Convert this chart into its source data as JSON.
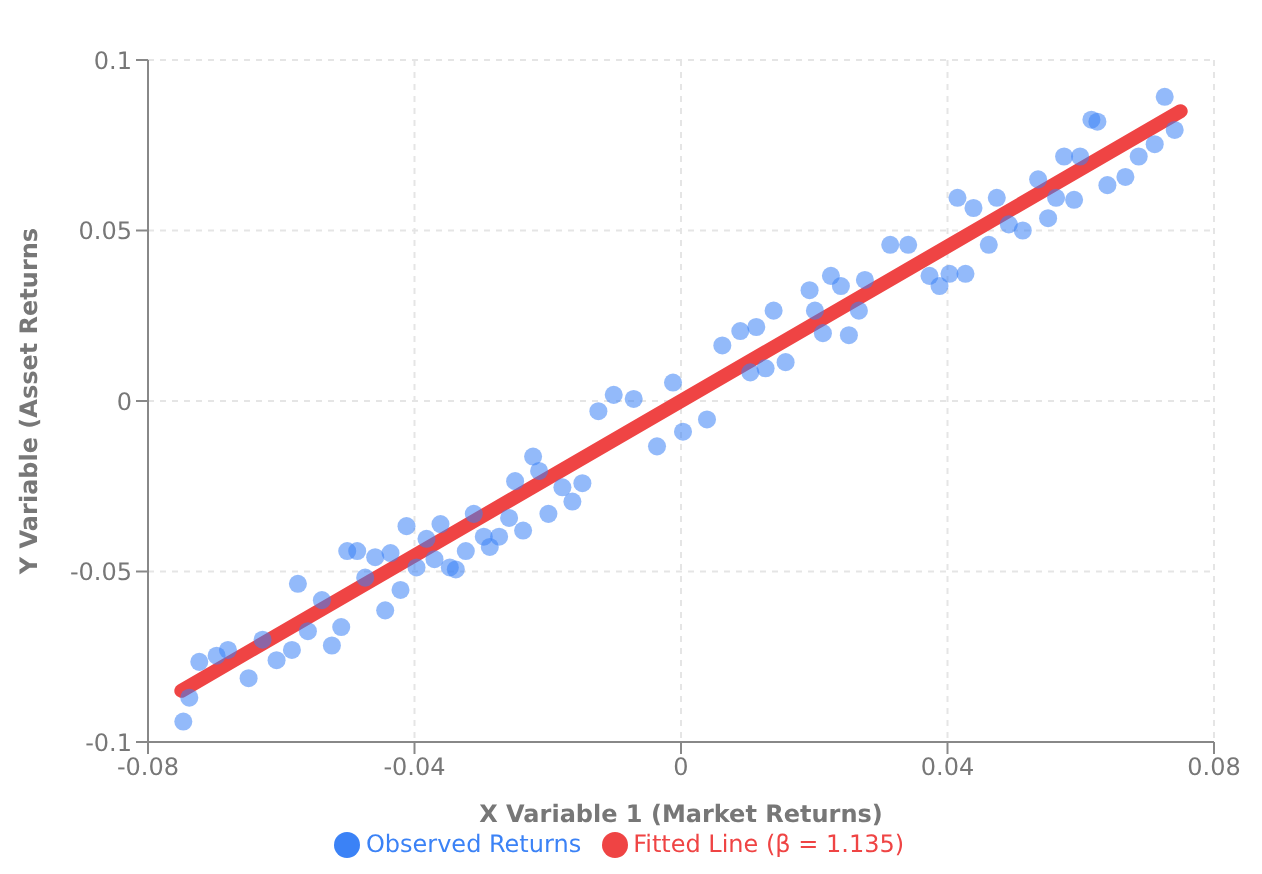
{
  "chart_data": {
    "type": "scatter",
    "xlabel": "X Variable 1 (Market Returns)",
    "ylabel": "Y Variable (Asset Returns",
    "xlim": [
      -0.08,
      0.08
    ],
    "xticks": [
      -0.08,
      -0.04,
      0,
      0.04,
      0.08
    ],
    "ylim": [
      -0.1,
      0.1
    ],
    "yticks": [
      -0.1,
      -0.05,
      0,
      0.05,
      0.1
    ],
    "grid": true,
    "legend": "bottom",
    "series": [
      {
        "name": "Observed Returns",
        "marker": "circle",
        "color": "#3b82f6",
        "x": [
          -0.0747,
          -0.0738,
          -0.0723,
          -0.0697,
          -0.068,
          -0.0649,
          -0.0628,
          -0.0607,
          -0.0584,
          -0.0575,
          -0.056,
          -0.0539,
          -0.0524,
          -0.051,
          -0.0501,
          -0.0486,
          -0.0474,
          -0.0459,
          -0.0444,
          -0.0436,
          -0.0421,
          -0.0412,
          -0.0397,
          -0.0382,
          -0.037,
          -0.0361,
          -0.0347,
          -0.0338,
          -0.0323,
          -0.0311,
          -0.0296,
          -0.0287,
          -0.0273,
          -0.0258,
          -0.0249,
          -0.0237,
          -0.0222,
          -0.0213,
          -0.0199,
          -0.0178,
          -0.0163,
          -0.0148,
          -0.0124,
          -0.0101,
          -0.0071,
          -0.0036,
          -0.0012,
          0.0003,
          0.0039,
          0.0062,
          0.0089,
          0.0113,
          0.0139,
          0.0157,
          0.0104,
          0.0127,
          0.0193,
          0.0201,
          0.0213,
          0.0225,
          0.024,
          0.0252,
          0.0267,
          0.0276,
          0.0314,
          0.0341,
          0.0373,
          0.0388,
          0.0403,
          0.0427,
          0.0415,
          0.0439,
          0.0462,
          0.0474,
          0.0492,
          0.0513,
          0.0536,
          0.0551,
          0.0563,
          0.0575,
          0.059,
          0.0599,
          0.0616,
          0.0625,
          0.064,
          0.0667,
          0.0687,
          0.0711,
          0.0726,
          0.0741
        ],
        "values": [
          -0.094,
          -0.087,
          -0.0765,
          -0.0747,
          -0.073,
          -0.0813,
          -0.07,
          -0.076,
          -0.073,
          -0.0536,
          -0.0675,
          -0.0584,
          -0.0717,
          -0.0663,
          -0.044,
          -0.044,
          -0.0518,
          -0.0458,
          -0.0614,
          -0.0446,
          -0.0554,
          -0.0367,
          -0.0488,
          -0.0404,
          -0.0464,
          -0.0361,
          -0.0488,
          -0.0494,
          -0.044,
          -0.0331,
          -0.0398,
          -0.0428,
          -0.0398,
          -0.0343,
          -0.0235,
          -0.038,
          -0.0163,
          -0.0205,
          -0.0331,
          -0.0253,
          -0.0295,
          -0.0241,
          -0.003,
          0.0018,
          0.0006,
          -0.0133,
          0.0054,
          -0.009,
          -0.0054,
          0.0163,
          0.0205,
          0.0217,
          0.0265,
          0.0114,
          0.0084,
          0.0096,
          0.0325,
          0.0265,
          0.0199,
          0.0367,
          0.0337,
          0.0193,
          0.0265,
          0.0355,
          0.0458,
          0.0458,
          0.0367,
          0.0337,
          0.0373,
          0.0373,
          0.0596,
          0.0566,
          0.0458,
          0.0596,
          0.0518,
          0.05,
          0.065,
          0.0536,
          0.0596,
          0.0717,
          0.059,
          0.0717,
          0.0825,
          0.0819,
          0.0633,
          0.0657,
          0.0717,
          0.0753,
          0.0892,
          0.0795
        ]
      },
      {
        "name": "Fitted Line (β = 1.135)",
        "type": "line",
        "marker": "none",
        "color": "#ef4444",
        "x": [
          -0.075,
          0.075
        ],
        "values": [
          -0.085,
          0.085
        ]
      }
    ]
  }
}
